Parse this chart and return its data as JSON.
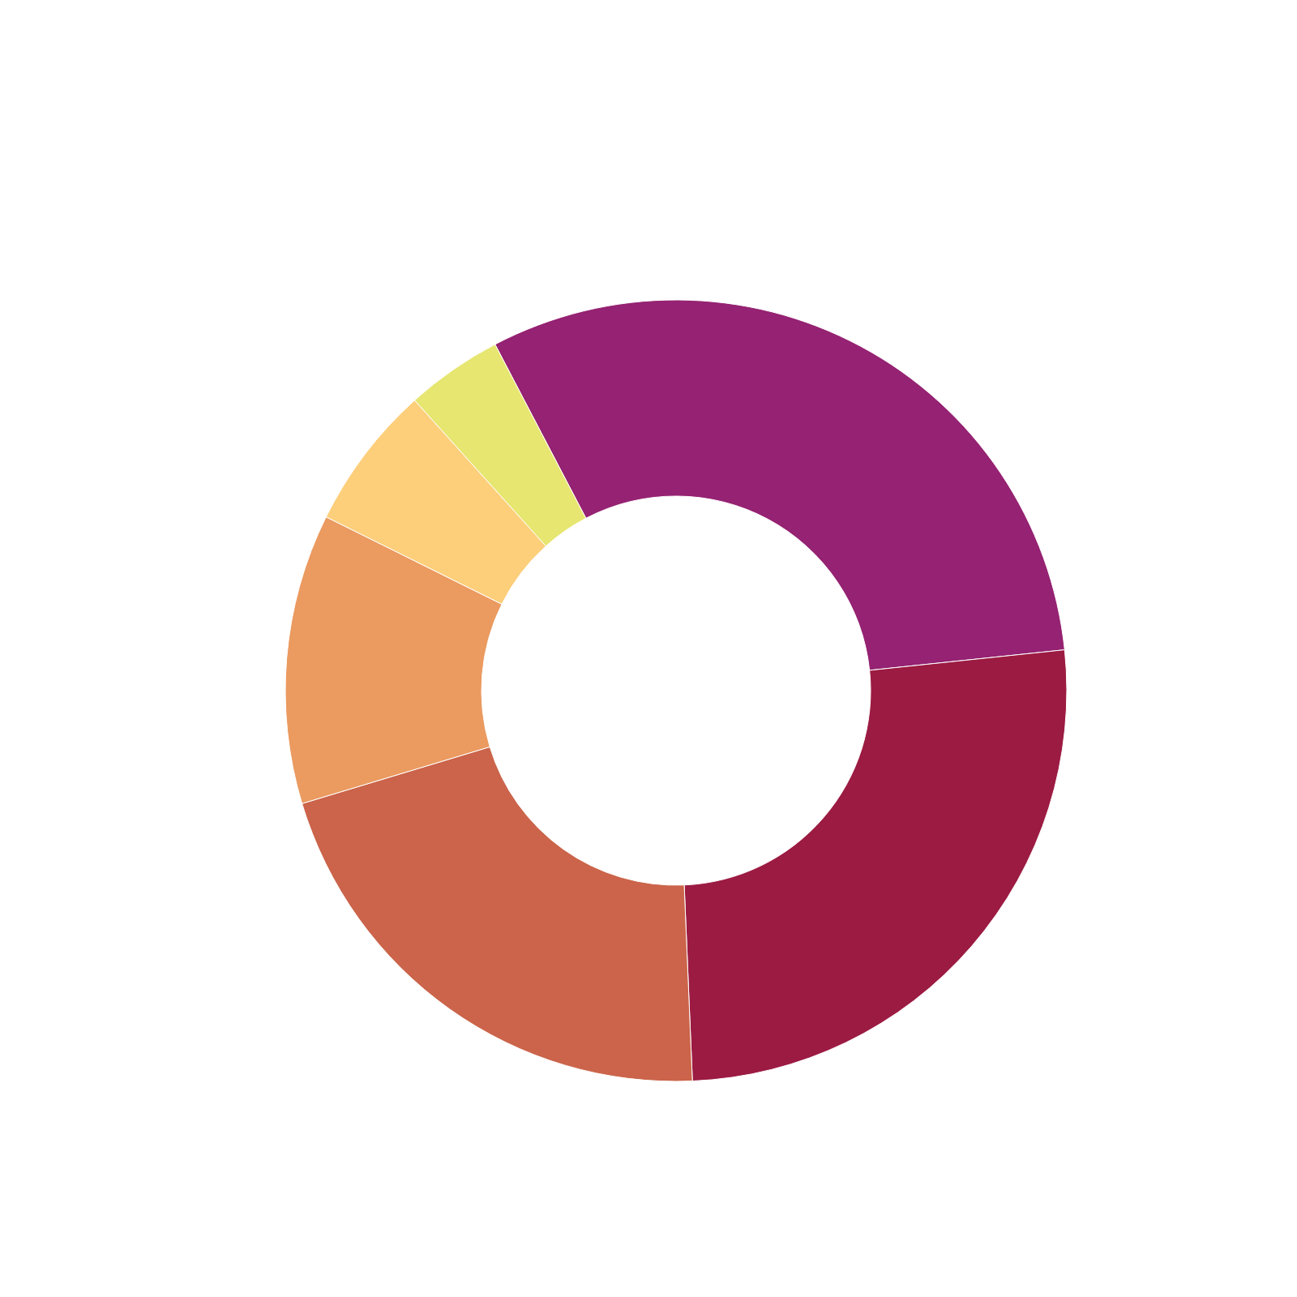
{
  "chart_data": {
    "type": "donut",
    "categories": [
      null,
      null,
      null,
      null,
      null,
      null
    ],
    "values": [
      31,
      26,
      21,
      12,
      6,
      4
    ],
    "colors": [
      "#952272",
      "#9c1b42",
      "#cb644a",
      "#eb9a60",
      "#fdcf7b",
      "#e6e670"
    ]
  }
}
